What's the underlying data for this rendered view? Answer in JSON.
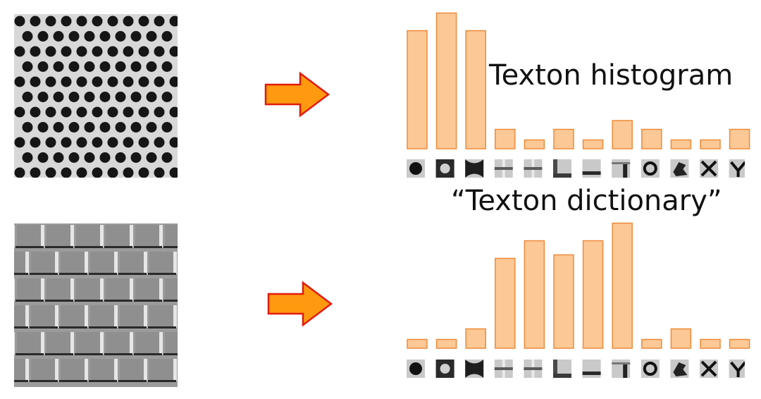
{
  "labels": {
    "histogram": "Texton histogram",
    "dictionary": "“Texton dictionary”"
  },
  "colors": {
    "bar_fill": "#fcc896",
    "bar_stroke": "#ee8a3a",
    "arrow_fill": "#ff9a10",
    "arrow_stroke": "#e01b0a"
  },
  "icons": [
    "dot-icon",
    "cross-dark-icon",
    "saddle-icon",
    "cross-light-icon",
    "cross-light-icon",
    "corner-icon",
    "edge-h-icon",
    "corner-v-icon",
    "ring-icon",
    "blob-icon",
    "x-icon",
    "vy-icon"
  ],
  "chart_data": [
    {
      "type": "bar",
      "name": "top",
      "values": [
        67,
        77,
        67,
        11,
        5,
        11,
        5,
        16,
        11,
        5,
        5,
        11
      ]
    },
    {
      "type": "bar",
      "name": "bottom",
      "values": [
        5,
        5,
        11,
        51,
        61,
        53,
        61,
        71,
        5,
        11,
        5,
        5
      ]
    }
  ]
}
